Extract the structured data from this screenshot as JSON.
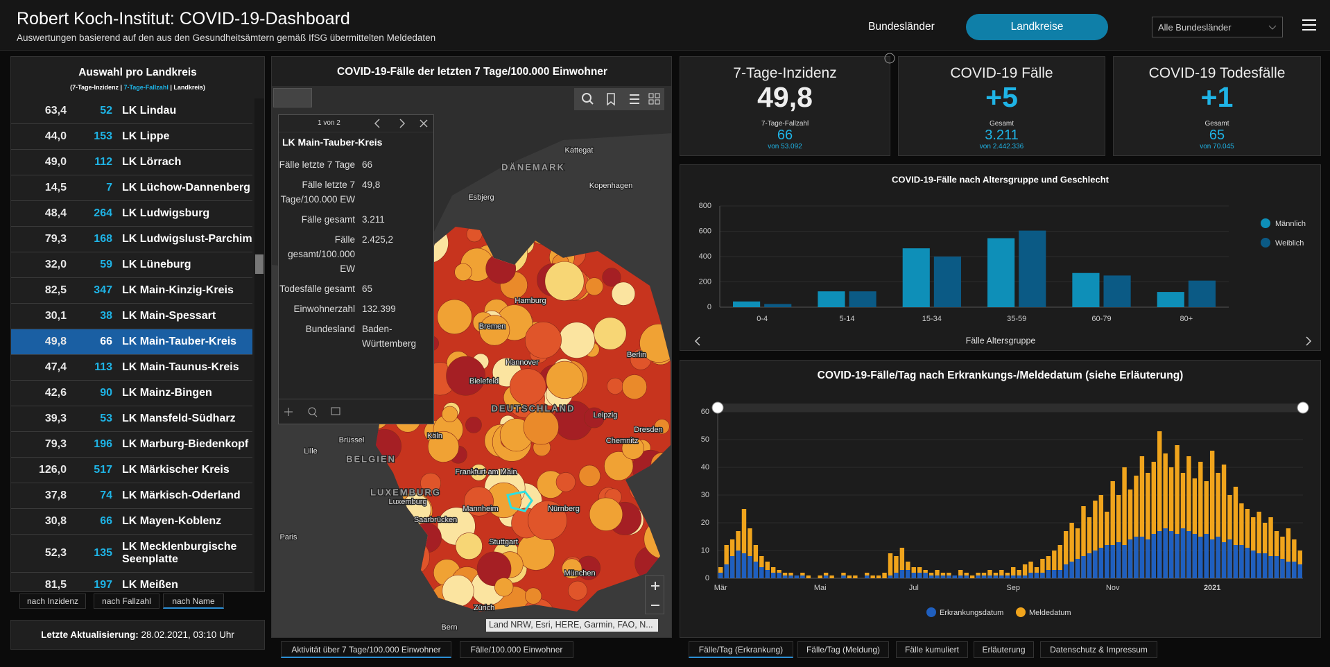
{
  "header": {
    "title": "Robert Koch-Institut: COVID-19-Dashboard",
    "subtitle": "Auswertungen basierend auf den aus den Gesundheitsämtern gemäß IfSG übermittelten Meldedaten",
    "tabs": [
      "Bundesländer",
      "Landkreise"
    ],
    "active_tab": 1,
    "dropdown": "Alle Bundesländer"
  },
  "district_list": {
    "title": "Auswahl pro Landkreis",
    "legend": [
      "(7-Tage-Inzidenz | ",
      "7-Tage-Fallzahl",
      " | Landkreis)"
    ],
    "selected": 9,
    "rows": [
      [
        "63,4",
        "52",
        "LK Lindau"
      ],
      [
        "44,0",
        "153",
        "LK Lippe"
      ],
      [
        "49,0",
        "112",
        "LK Lörrach"
      ],
      [
        "14,5",
        "7",
        "LK Lüchow-Dannenberg"
      ],
      [
        "48,4",
        "264",
        "LK Ludwigsburg"
      ],
      [
        "79,3",
        "168",
        "LK Ludwigslust-Parchim"
      ],
      [
        "32,0",
        "59",
        "LK Lüneburg"
      ],
      [
        "82,5",
        "347",
        "LK Main-Kinzig-Kreis"
      ],
      [
        "30,1",
        "38",
        "LK Main-Spessart"
      ],
      [
        "49,8",
        "66",
        "LK Main-Tauber-Kreis"
      ],
      [
        "47,4",
        "113",
        "LK Main-Taunus-Kreis"
      ],
      [
        "42,6",
        "90",
        "LK Mainz-Bingen"
      ],
      [
        "39,3",
        "53",
        "LK Mansfeld-Südharz"
      ],
      [
        "79,3",
        "196",
        "LK Marburg-Biedenkopf"
      ],
      [
        "126,0",
        "517",
        "LK Märkischer Kreis"
      ],
      [
        "37,8",
        "74",
        "LK Märkisch-Oderland"
      ],
      [
        "30,8",
        "66",
        "LK Mayen-Koblenz"
      ],
      [
        "52,3",
        "135",
        "LK Mecklenburgische Seenplatte"
      ],
      [
        "81,5",
        "197",
        "LK Meißen"
      ]
    ],
    "sort_buttons": [
      "nach Inzidenz",
      "nach Fallzahl",
      "nach Name"
    ],
    "active_sort": 2
  },
  "last_update": {
    "label": "Letzte Aktualisierung:",
    "value": "28.02.2021, 03:10 Uhr"
  },
  "map": {
    "title": "COVID-19-Fälle der letzten 7 Tage/100.000 Einwohner",
    "labels": [
      "Kattegat",
      "DÄNEMARK",
      "Kopenhagen",
      "Esbjerg",
      "Hamburg",
      "Bremen",
      "Berlin",
      "Hannover",
      "Bielefeld",
      "DEUTSCHLAND",
      "Leipzig",
      "Dresden",
      "Köln",
      "Chemnitz",
      "Brüssel",
      "BELGIEN",
      "Lille",
      "Frankfurt am Main",
      "LUXEMBURG",
      "Luxemburg",
      "Mannheim",
      "Nürnberg",
      "Saarbrücken",
      "Stuttgart",
      "Paris",
      "München",
      "Zürich",
      "Bern"
    ],
    "attribution": "Land NRW, Esri, HERE, Garmin, FAO, N...",
    "tabs": [
      "Aktivität über 7 Tage/100.000 Einwohner",
      "Fälle/100.000 Einwohner"
    ],
    "active_tab": 0
  },
  "popup": {
    "pager": "1 von 2",
    "title": "LK Main-Tauber-Kreis",
    "fields": [
      [
        "Fälle letzte 7 Tage",
        "66"
      ],
      [
        "Fälle letzte 7 Tage/100.000 EW",
        "49,8"
      ],
      [
        "Fälle gesamt",
        "3.211"
      ],
      [
        "Fälle gesamt/100.000 EW",
        "2.425,2"
      ],
      [
        "Todesfälle gesamt",
        "65"
      ],
      [
        "Einwohnerzahl",
        "132.399"
      ],
      [
        "Bundesland",
        "Baden-Württemberg"
      ]
    ]
  },
  "kpis": [
    {
      "title": "7-Tage-Inzidenz",
      "value": "49,8",
      "sublabel": "7-Tage-Fallzahl",
      "subvalue": "66",
      "note": "von 53.092"
    },
    {
      "title": "COVID-19 Fälle",
      "value": "+5",
      "sublabel": "Gesamt",
      "subvalue": "3.211",
      "note": "von 2.442.336"
    },
    {
      "title": "COVID-19 Todesfälle",
      "value": "+1",
      "sublabel": "Gesamt",
      "subvalue": "65",
      "note": "von 70.045"
    }
  ],
  "chart_tabs": [
    "Fälle/Tag (Erkrankung)",
    "Fälle/Tag (Meldung)",
    "Fälle kumuliert",
    "Erläuterung",
    "Datenschutz & Impressum"
  ],
  "active_chart_tab": 0,
  "chart_data": [
    {
      "type": "bar",
      "title": "COVID-19-Fälle nach Altersgruppe und Geschlecht",
      "x_label": "Fälle Altersgruppe",
      "categories": [
        "0-4",
        "5-14",
        "15-34",
        "35-59",
        "60-79",
        "80+"
      ],
      "series": [
        {
          "name": "Männlich",
          "color": "#0e8fb8",
          "values": [
            45,
            125,
            465,
            545,
            270,
            120
          ]
        },
        {
          "name": "Weiblich",
          "color": "#0b5a85",
          "values": [
            25,
            125,
            400,
            605,
            250,
            210
          ]
        }
      ],
      "ylim": [
        0,
        800
      ],
      "yticks": [
        0,
        200,
        400,
        600,
        800
      ],
      "grid": true
    },
    {
      "type": "overlap-bar",
      "title": "COVID-19-Fälle/Tag nach Erkrankungs-/Meldedatum (siehe Erläuterung)",
      "categories": [
        "Mär",
        null,
        null,
        null,
        null,
        null,
        null,
        null,
        null,
        null,
        null,
        null,
        null,
        null,
        null,
        null,
        null,
        "Mai",
        null,
        null,
        null,
        null,
        null,
        null,
        null,
        null,
        null,
        null,
        null,
        null,
        null,
        null,
        null,
        "Jul",
        null,
        null,
        null,
        null,
        null,
        null,
        null,
        null,
        null,
        null,
        null,
        null,
        null,
        null,
        null,
        null,
        "Sep",
        null,
        null,
        null,
        null,
        null,
        null,
        null,
        null,
        null,
        null,
        null,
        null,
        null,
        null,
        null,
        null,
        "Nov",
        null,
        null,
        null,
        null,
        null,
        null,
        null,
        null,
        null,
        null,
        null,
        null,
        null,
        null,
        null,
        null,
        "2021",
        null,
        null,
        null,
        null,
        null,
        null,
        null,
        null,
        null,
        null,
        null,
        null,
        null,
        null,
        null
      ],
      "series": [
        {
          "name": "Erkrankungsdatum",
          "color": "#1f5fbf",
          "values": [
            2,
            5,
            8,
            10,
            9,
            8,
            6,
            4,
            3,
            2,
            2,
            1,
            1,
            1,
            1,
            0,
            0,
            0,
            1,
            0,
            0,
            1,
            0,
            0,
            0,
            1,
            0,
            0,
            0,
            1,
            2,
            3,
            3,
            2,
            2,
            2,
            1,
            1,
            1,
            1,
            1,
            1,
            1,
            0,
            1,
            1,
            1,
            1,
            1,
            1,
            1,
            1,
            1,
            2,
            2,
            2,
            3,
            3,
            3,
            5,
            6,
            7,
            8,
            9,
            10,
            11,
            12,
            12,
            13,
            12,
            14,
            15,
            15,
            14,
            16,
            17,
            18,
            17,
            16,
            18,
            17,
            16,
            15,
            16,
            14,
            15,
            13,
            14,
            12,
            12,
            11,
            10,
            9,
            9,
            8,
            8,
            7,
            6,
            6,
            5
          ]
        },
        {
          "name": "Meldedatum",
          "color": "#f0a41c",
          "values": [
            4,
            12,
            14,
            17,
            25,
            18,
            12,
            8,
            6,
            4,
            3,
            2,
            2,
            1,
            2,
            1,
            0,
            1,
            2,
            1,
            0,
            2,
            1,
            1,
            0,
            2,
            1,
            1,
            2,
            9,
            8,
            11,
            6,
            4,
            4,
            3,
            2,
            3,
            2,
            2,
            1,
            3,
            2,
            1,
            2,
            2,
            3,
            2,
            3,
            2,
            4,
            3,
            5,
            6,
            4,
            7,
            8,
            10,
            12,
            17,
            20,
            18,
            26,
            22,
            28,
            30,
            24,
            35,
            30,
            40,
            32,
            37,
            44,
            38,
            42,
            53,
            45,
            40,
            48,
            38,
            44,
            36,
            42,
            35,
            46,
            38,
            41,
            30,
            33,
            27,
            25,
            22,
            24,
            20,
            22,
            17,
            15,
            18,
            14,
            10
          ]
        }
      ],
      "ylim": [
        0,
        60
      ],
      "yticks": [
        0,
        10,
        20,
        30,
        40,
        50,
        60
      ],
      "grid": true
    }
  ]
}
